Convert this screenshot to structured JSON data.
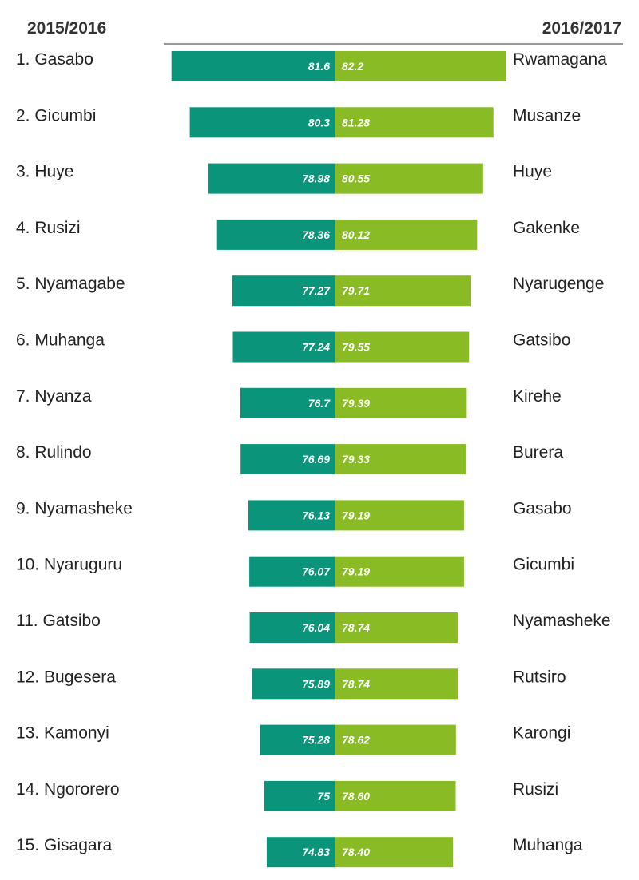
{
  "colors": {
    "left_bar": "#0a957a",
    "right_bar": "#88bb24",
    "rule": "#333333"
  },
  "chart_data": {
    "type": "bar",
    "layout": "butterfly",
    "left_header": "2015/2016",
    "right_header": "2016/2017",
    "xlim": [
      70,
      83
    ],
    "left": [
      {
        "label": "1. Gasabo",
        "value": 81.6,
        "value_label": "81.6"
      },
      {
        "label": "2. Gicumbi",
        "value": 80.3,
        "value_label": "80.3"
      },
      {
        "label": "3. Huye",
        "value": 78.98,
        "value_label": "78.98"
      },
      {
        "label": "4. Rusizi",
        "value": 78.36,
        "value_label": "78.36"
      },
      {
        "label": "5. Nyamagabe",
        "value": 77.27,
        "value_label": "77.27"
      },
      {
        "label": "6. Muhanga",
        "value": 77.24,
        "value_label": "77.24"
      },
      {
        "label": "7. Nyanza",
        "value": 76.7,
        "value_label": "76.7"
      },
      {
        "label": "8. Rulindo",
        "value": 76.69,
        "value_label": "76.69"
      },
      {
        "label": "9. Nyamasheke",
        "value": 76.13,
        "value_label": "76.13"
      },
      {
        "label": "10. Nyaruguru",
        "value": 76.07,
        "value_label": "76.07"
      },
      {
        "label": "11. Gatsibo",
        "value": 76.04,
        "value_label": "76.04"
      },
      {
        "label": "12. Bugesera",
        "value": 75.89,
        "value_label": "75.89"
      },
      {
        "label": "13. Kamonyi",
        "value": 75.28,
        "value_label": "75.28"
      },
      {
        "label": "14. Ngororero",
        "value": 75,
        "value_label": "75"
      },
      {
        "label": "15. Gisagara",
        "value": 74.83,
        "value_label": "74.83"
      }
    ],
    "right": [
      {
        "label": "Rwamagana",
        "value": 82.2,
        "value_label": "82.2"
      },
      {
        "label": "Musanze",
        "value": 81.28,
        "value_label": "81.28"
      },
      {
        "label": "Huye",
        "value": 80.55,
        "value_label": "80.55"
      },
      {
        "label": "Gakenke",
        "value": 80.12,
        "value_label": "80.12"
      },
      {
        "label": "Nyarugenge",
        "value": 79.71,
        "value_label": "79.71"
      },
      {
        "label": "Gatsibo",
        "value": 79.55,
        "value_label": "79.55"
      },
      {
        "label": "Kirehe",
        "value": 79.39,
        "value_label": "79.39"
      },
      {
        "label": "Burera",
        "value": 79.33,
        "value_label": "79.33"
      },
      {
        "label": "Gasabo",
        "value": 79.19,
        "value_label": "79.19"
      },
      {
        "label": "Gicumbi",
        "value": 79.19,
        "value_label": "79.19"
      },
      {
        "label": "Nyamasheke",
        "value": 78.74,
        "value_label": "78.74"
      },
      {
        "label": "Rutsiro",
        "value": 78.74,
        "value_label": "78.74"
      },
      {
        "label": "Karongi",
        "value": 78.62,
        "value_label": "78.62"
      },
      {
        "label": "Rusizi",
        "value": 78.6,
        "value_label": "78.60"
      },
      {
        "label": "Muhanga",
        "value": 78.4,
        "value_label": "78.40"
      }
    ]
  }
}
